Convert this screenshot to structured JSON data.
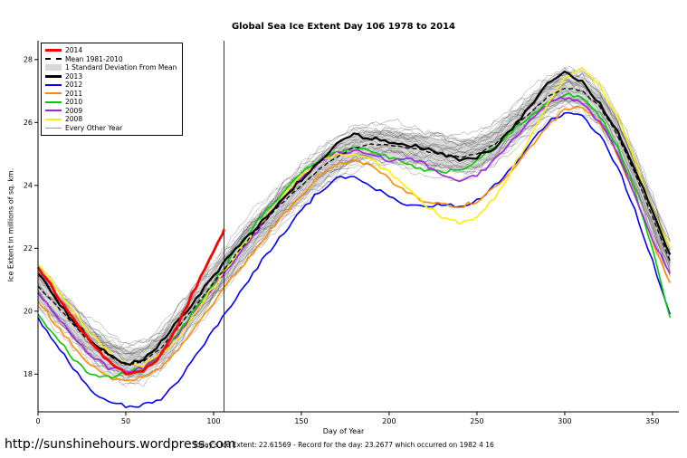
{
  "title": "Global Sea Ice Extent Day 106 1978 to 2014",
  "footer": {
    "link": "http://sunshinehours.wordpress.com",
    "status": "Today's Ice Extent: 22.61569  -  Record for the day: 23.2677 which occurred on 1982 4 16"
  },
  "legend": {
    "items": [
      {
        "label": "2014",
        "swatch": "line",
        "color": "#ff0000",
        "weight": 3
      },
      {
        "label": "Mean 1981-2010",
        "swatch": "dashed",
        "color": "#000000",
        "weight": 2
      },
      {
        "label": "1 Standard Deviation From Mean",
        "swatch": "box",
        "color": "#d8d8d8"
      },
      {
        "label": "2013",
        "swatch": "line",
        "color": "#000000",
        "weight": 3
      },
      {
        "label": "2012",
        "swatch": "line",
        "color": "#0000ee",
        "weight": 2
      },
      {
        "label": "2011",
        "swatch": "line",
        "color": "#ff8c00",
        "weight": 2
      },
      {
        "label": "2010",
        "swatch": "line",
        "color": "#00cc00",
        "weight": 2
      },
      {
        "label": "2009",
        "swatch": "line",
        "color": "#a020f0",
        "weight": 2
      },
      {
        "label": "2008",
        "swatch": "line",
        "color": "#ffee00",
        "weight": 2
      },
      {
        "label": "Every Other Year",
        "swatch": "line",
        "color": "#9a9a9a",
        "weight": 1
      }
    ]
  },
  "chart_data": {
    "type": "line",
    "title": "Global Sea Ice Extent Day 106 1978 to 2014",
    "xlabel": "Day of Year",
    "ylabel": "Ice Extent in millions of sq. km.",
    "xlim": [
      0,
      365
    ],
    "ylim": [
      16.8,
      28.6
    ],
    "x_ticks": [
      0,
      50,
      100,
      150,
      200,
      250,
      300,
      350
    ],
    "y_ticks": [
      18,
      20,
      22,
      24,
      26,
      28
    ],
    "day_marker": 106,
    "grid": false,
    "legend_position": "top-left",
    "x": [
      0,
      10,
      20,
      30,
      40,
      50,
      60,
      70,
      80,
      90,
      100,
      110,
      120,
      130,
      140,
      150,
      160,
      170,
      180,
      190,
      200,
      210,
      220,
      230,
      240,
      250,
      260,
      270,
      280,
      290,
      300,
      310,
      320,
      330,
      340,
      350,
      360
    ],
    "mean_1981_2010": [
      20.8,
      20.2,
      19.6,
      19.0,
      18.6,
      18.3,
      18.4,
      18.8,
      19.5,
      20.2,
      20.9,
      21.6,
      22.3,
      22.9,
      23.5,
      24.0,
      24.5,
      24.9,
      25.2,
      25.3,
      25.3,
      25.2,
      25.1,
      25.0,
      24.9,
      25.0,
      25.3,
      25.8,
      26.3,
      26.8,
      27.1,
      27.0,
      26.5,
      25.6,
      24.4,
      23.0,
      21.6
    ],
    "std_dev": 0.45,
    "series": [
      {
        "name": "2013",
        "color": "#000000",
        "width": 2.2,
        "values": [
          21.2,
          20.4,
          19.7,
          19.1,
          18.6,
          18.3,
          18.5,
          19.0,
          19.7,
          20.4,
          21.1,
          21.8,
          22.4,
          23.0,
          23.6,
          24.2,
          24.7,
          25.3,
          25.6,
          25.5,
          25.4,
          25.3,
          25.2,
          25.0,
          24.8,
          24.9,
          25.2,
          25.8,
          26.5,
          27.2,
          27.6,
          27.3,
          26.6,
          25.7,
          24.5,
          23.2,
          21.8
        ]
      },
      {
        "name": "2012",
        "color": "#0000ee",
        "width": 1.6,
        "values": [
          19.8,
          19.0,
          18.2,
          17.5,
          17.1,
          17.0,
          17.0,
          17.2,
          17.8,
          18.6,
          19.4,
          20.2,
          21.0,
          21.8,
          22.5,
          23.2,
          23.8,
          24.2,
          24.3,
          24.0,
          23.6,
          23.4,
          23.3,
          23.4,
          23.3,
          23.5,
          24.0,
          24.6,
          25.3,
          26.0,
          26.3,
          26.2,
          25.6,
          24.6,
          23.2,
          21.6,
          19.9
        ]
      },
      {
        "name": "2011",
        "color": "#ff8c00",
        "width": 1.6,
        "values": [
          20.3,
          19.6,
          18.9,
          18.3,
          17.9,
          17.8,
          17.9,
          18.2,
          18.8,
          19.5,
          20.3,
          21.0,
          21.7,
          22.4,
          23.1,
          23.7,
          24.3,
          24.7,
          24.8,
          24.6,
          24.2,
          23.8,
          23.5,
          23.4,
          23.3,
          23.5,
          23.9,
          24.5,
          25.2,
          25.9,
          26.4,
          26.5,
          26.0,
          25.0,
          23.7,
          22.2,
          20.9
        ]
      },
      {
        "name": "2010",
        "color": "#00cc00",
        "width": 1.6,
        "values": [
          19.9,
          19.2,
          18.5,
          18.0,
          17.9,
          18.0,
          18.2,
          18.6,
          19.3,
          20.1,
          20.9,
          21.7,
          22.5,
          23.2,
          23.8,
          24.4,
          24.8,
          25.1,
          25.2,
          25.1,
          24.9,
          24.7,
          24.5,
          24.4,
          24.5,
          24.8,
          25.2,
          25.7,
          26.2,
          26.6,
          26.9,
          26.8,
          26.2,
          25.2,
          23.8,
          22.0,
          19.8
        ]
      },
      {
        "name": "2009",
        "color": "#a020f0",
        "width": 1.6,
        "values": [
          20.6,
          19.9,
          19.2,
          18.6,
          18.2,
          18.1,
          18.2,
          18.6,
          19.2,
          20.0,
          20.8,
          21.5,
          22.2,
          22.9,
          23.6,
          24.2,
          24.7,
          25.0,
          25.1,
          25.0,
          24.8,
          24.9,
          24.7,
          24.3,
          24.1,
          24.3,
          24.8,
          25.4,
          26.1,
          26.6,
          26.8,
          26.6,
          26.0,
          25.0,
          23.7,
          22.3,
          21.2
        ]
      },
      {
        "name": "2008",
        "color": "#ffee00",
        "width": 1.6,
        "values": [
          21.5,
          20.8,
          20.0,
          19.3,
          18.7,
          18.3,
          18.3,
          18.6,
          19.2,
          20.0,
          20.8,
          21.6,
          22.3,
          23.0,
          23.7,
          24.3,
          24.8,
          25.0,
          25.0,
          24.8,
          24.4,
          23.9,
          23.4,
          23.0,
          22.8,
          23.0,
          23.6,
          24.5,
          25.5,
          26.6,
          27.4,
          27.7,
          27.2,
          26.2,
          24.8,
          23.2,
          22.0
        ]
      }
    ],
    "series_2014": {
      "name": "2014",
      "color": "#ff0000",
      "width": 2.8,
      "x": [
        0,
        10,
        20,
        30,
        40,
        50,
        60,
        70,
        80,
        90,
        100,
        106
      ],
      "values": [
        21.4,
        20.6,
        19.8,
        19.0,
        18.4,
        18.0,
        18.1,
        18.6,
        19.6,
        20.8,
        21.9,
        22.6
      ]
    },
    "background_years": {
      "label": "Every Other Year",
      "count": 26,
      "color": "#555555",
      "max_offset": 0.65
    }
  }
}
